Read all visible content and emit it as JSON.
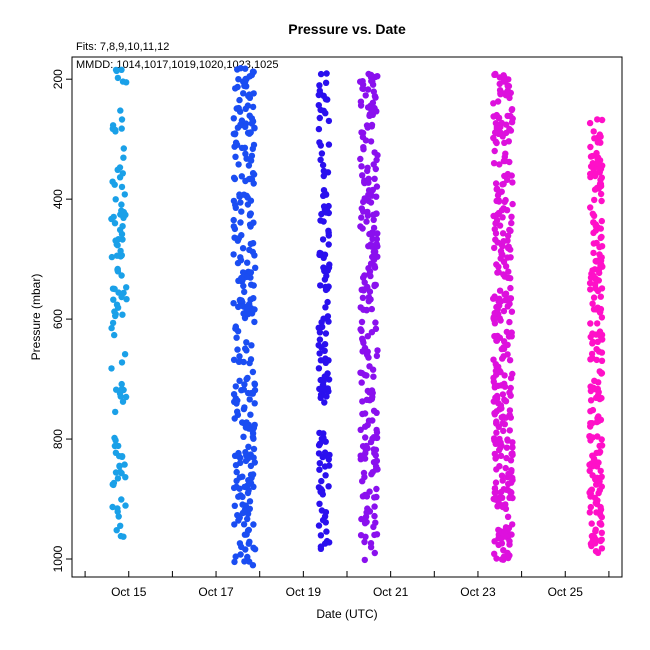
{
  "chart_data": {
    "type": "scatter",
    "title": "Pressure  vs. Date",
    "subtitle_fits": "Fits: 7,8,9,10,11,12",
    "legend_text": "MMDD: 1014,1017,1019,1020,1023,1025",
    "xlabel": "Date (UTC)",
    "ylabel": "Pressure (mbar)",
    "x_tick_labels": [
      "Oct 15",
      "Oct 17",
      "Oct 19",
      "Oct 21",
      "Oct 23",
      "Oct 25"
    ],
    "x_tick_values": [
      15,
      17,
      19,
      21,
      23,
      25
    ],
    "xlim": [
      13.7,
      26.3
    ],
    "y_tick_labels": [
      "200",
      "400",
      "600",
      "800",
      "1000"
    ],
    "y_tick_values": [
      200,
      400,
      600,
      800,
      1000
    ],
    "ylim": [
      1030,
      163
    ],
    "y_inverted": true,
    "grid": false,
    "series": [
      {
        "color": "#1aa0e8",
        "x_range": [
          14.6,
          14.95
        ],
        "y_range": [
          180,
          965
        ],
        "count": 110
      },
      {
        "color": "#1a4df2",
        "x_range": [
          17.4,
          17.9
        ],
        "y_range": [
          178,
          1012
        ],
        "count": 280
      },
      {
        "color": "#2a10ee",
        "x_range": [
          19.35,
          19.6
        ],
        "y_range": [
          190,
          1005
        ],
        "count": 140
      },
      {
        "color": "#8a10ee",
        "x_range": [
          20.3,
          20.7
        ],
        "y_range": [
          190,
          1005
        ],
        "count": 230
      },
      {
        "color": "#dd10dd",
        "x_range": [
          23.35,
          23.8
        ],
        "y_range": [
          190,
          1003
        ],
        "count": 320
      },
      {
        "color": "#ff10c8",
        "x_range": [
          25.55,
          25.85
        ],
        "y_range": [
          265,
          990
        ],
        "count": 220
      }
    ]
  }
}
